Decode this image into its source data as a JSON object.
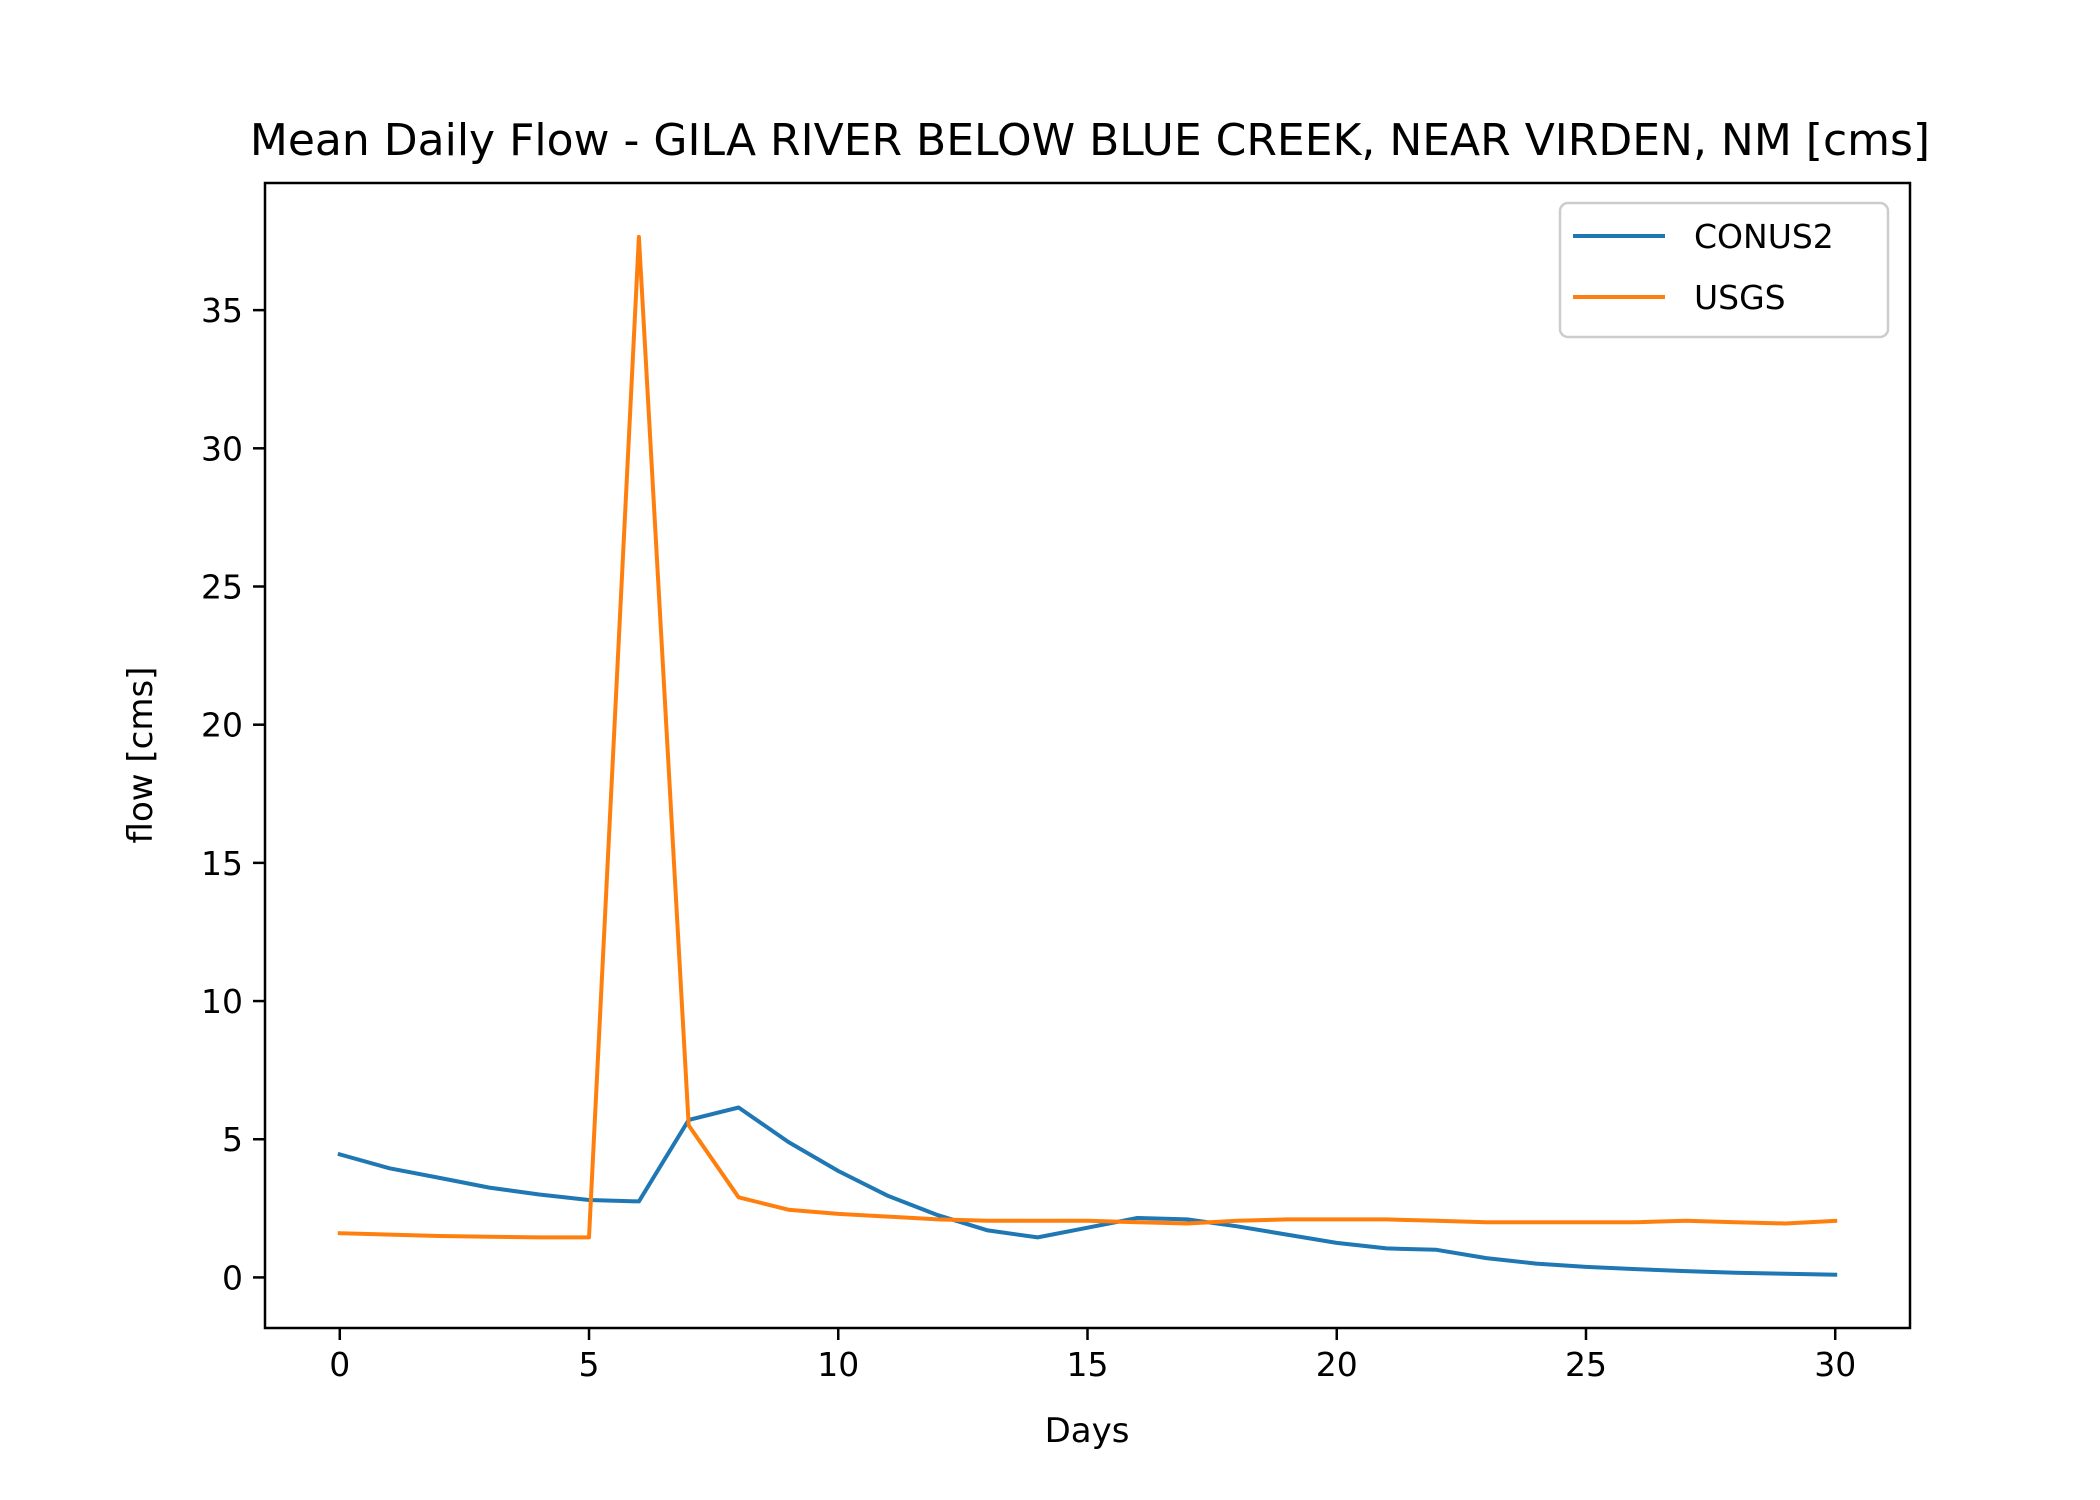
{
  "chart_data": {
    "type": "line",
    "title": "Mean Daily Flow - GILA RIVER BELOW BLUE CREEK, NEAR VIRDEN, NM [cms]",
    "xlabel": "Days",
    "ylabel": "flow [cms]",
    "xlim": [
      -1.5,
      31.5
    ],
    "ylim": [
      -1.83,
      39.6
    ],
    "xticks": [
      0,
      5,
      10,
      15,
      20,
      25,
      30
    ],
    "yticks": [
      0,
      5,
      10,
      15,
      20,
      25,
      30,
      35
    ],
    "grid": false,
    "legend_position": "upper right",
    "x": [
      0,
      1,
      2,
      3,
      4,
      5,
      6,
      7,
      8,
      9,
      10,
      11,
      12,
      13,
      14,
      15,
      16,
      17,
      18,
      19,
      20,
      21,
      22,
      23,
      24,
      25,
      26,
      27,
      28,
      29,
      30
    ],
    "series": [
      {
        "name": "CONUS2",
        "color": "#1f77b4",
        "values": [
          4.45,
          3.95,
          3.6,
          3.25,
          3.0,
          2.8,
          2.75,
          5.7,
          6.15,
          4.9,
          3.85,
          2.95,
          2.25,
          1.7,
          1.45,
          1.8,
          2.15,
          2.1,
          1.85,
          1.55,
          1.25,
          1.05,
          1.0,
          0.7,
          0.5,
          0.38,
          0.3,
          0.23,
          0.17,
          0.13,
          0.1
        ]
      },
      {
        "name": "USGS",
        "color": "#ff7f0e",
        "values": [
          1.6,
          1.55,
          1.5,
          1.47,
          1.45,
          1.45,
          37.65,
          5.5,
          2.9,
          2.45,
          2.3,
          2.2,
          2.1,
          2.05,
          2.05,
          2.05,
          2.0,
          1.95,
          2.05,
          2.1,
          2.1,
          2.1,
          2.05,
          2.0,
          2.0,
          2.0,
          2.0,
          2.05,
          2.0,
          1.95,
          2.05
        ]
      }
    ]
  }
}
